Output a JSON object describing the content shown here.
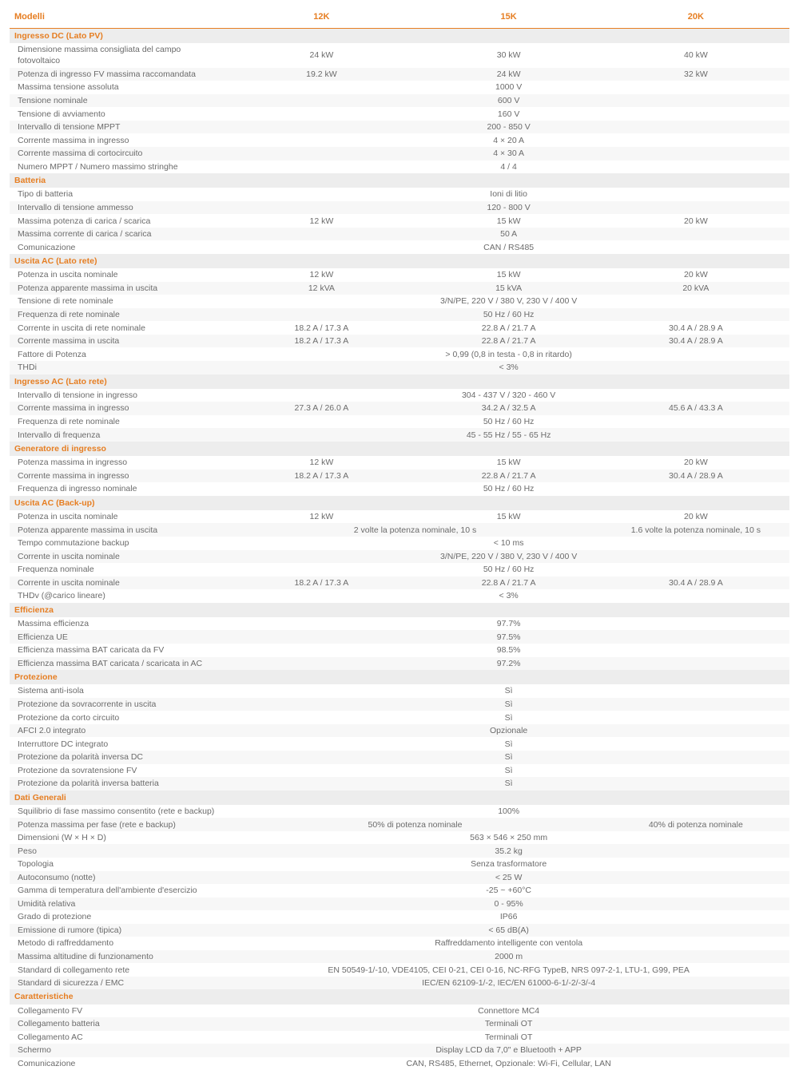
{
  "colors": {
    "accent": "#e67e22",
    "section_bg": "#ededed",
    "alt_bg": "#f7f7f7",
    "text": "#6b6b6b",
    "header_border": "#e67e22"
  },
  "header": {
    "label": "Modelli",
    "cols": [
      "12K",
      "15K",
      "20K"
    ]
  },
  "sections": [
    {
      "title": "Ingresso DC (Lato PV)",
      "rows": [
        {
          "label": "Dimensione massima consigliata del campo fotovoltaico",
          "vals": [
            "24 kW",
            "30 kW",
            "40 kW"
          ]
        },
        {
          "label": "Potenza di ingresso FV massima raccomandata",
          "vals": [
            "19.2 kW",
            "24 kW",
            "32 kW"
          ]
        },
        {
          "label": "Massima tensione assoluta",
          "merged": "1000 V"
        },
        {
          "label": "Tensione nominale",
          "merged": "600 V"
        },
        {
          "label": "Tensione di avviamento",
          "merged": "160 V"
        },
        {
          "label": "Intervallo di tensione MPPT",
          "merged": "200 - 850 V"
        },
        {
          "label": "Corrente massima in ingresso",
          "merged": "4 × 20 A"
        },
        {
          "label": "Corrente massima di cortocircuito",
          "merged": "4 × 30 A"
        },
        {
          "label": "Numero MPPT / Numero massimo stringhe",
          "merged": "4 / 4"
        }
      ]
    },
    {
      "title": "Batteria",
      "rows": [
        {
          "label": "Tipo di batteria",
          "merged": "Ioni di litio"
        },
        {
          "label": "Intervallo di tensione ammesso",
          "merged": "120 - 800 V"
        },
        {
          "label": "Massima potenza di carica / scarica",
          "vals": [
            "12 kW",
            "15 kW",
            "20 kW"
          ]
        },
        {
          "label": "Massima corrente di carica / scarica",
          "merged": "50 A"
        },
        {
          "label": "Comunicazione",
          "merged": "CAN / RS485"
        }
      ]
    },
    {
      "title": "Uscita AC (Lato rete)",
      "rows": [
        {
          "label": "Potenza in uscita nominale",
          "vals": [
            "12 kW",
            "15 kW",
            "20 kW"
          ]
        },
        {
          "label": "Potenza apparente massima in uscita",
          "vals": [
            "12 kVA",
            "15 kVA",
            "20 kVA"
          ]
        },
        {
          "label": "Tensione di rete nominale",
          "merged": "3/N/PE, 220 V / 380 V, 230 V / 400 V"
        },
        {
          "label": "Frequenza di rete nominale",
          "merged": "50 Hz / 60 Hz"
        },
        {
          "label": "Corrente in uscita di rete nominale",
          "vals": [
            "18.2 A / 17.3 A",
            "22.8 A / 21.7 A",
            "30.4 A / 28.9 A"
          ]
        },
        {
          "label": "Corrente massima in uscita",
          "vals": [
            "18.2 A / 17.3 A",
            "22.8 A / 21.7 A",
            "30.4 A / 28.9 A"
          ]
        },
        {
          "label": "Fattore di Potenza",
          "merged": "> 0,99 (0,8 in testa - 0,8 in ritardo)"
        },
        {
          "label": "THDi",
          "merged": "< 3%"
        }
      ]
    },
    {
      "title": "Ingresso AC (Lato rete)",
      "rows": [
        {
          "label": "Intervallo di tensione in ingresso",
          "merged": "304 - 437 V / 320 - 460 V"
        },
        {
          "label": "Corrente massima in ingresso",
          "vals": [
            "27.3 A / 26.0 A",
            "34.2 A / 32.5 A",
            "45.6 A / 43.3 A"
          ]
        },
        {
          "label": "Frequenza di rete nominale",
          "merged": "50 Hz / 60 Hz"
        },
        {
          "label": "Intervallo di frequenza",
          "merged": "45 - 55 Hz / 55 - 65 Hz"
        }
      ]
    },
    {
      "title": "Generatore di ingresso",
      "rows": [
        {
          "label": "Potenza massima in ingresso",
          "vals": [
            "12 kW",
            "15 kW",
            "20 kW"
          ]
        },
        {
          "label": "Corrente massima in ingresso",
          "vals": [
            "18.2 A / 17.3 A",
            "22.8 A / 21.7 A",
            "30.4 A / 28.9 A"
          ]
        },
        {
          "label": "Frequenza di ingresso nominale",
          "merged": "50 Hz / 60 Hz"
        }
      ]
    },
    {
      "title": "Uscita AC (Back-up)",
      "rows": [
        {
          "label": "Potenza in uscita nominale",
          "vals": [
            "12 kW",
            "15 kW",
            "20 kW"
          ]
        },
        {
          "label": "Potenza apparente massima in uscita",
          "vals_merge": [
            [
              "2 volte la potenza nominale, 10 s",
              2
            ],
            [
              "1.6 volte la potenza nominale, 10 s",
              1
            ]
          ]
        },
        {
          "label": "Tempo commutazione backup",
          "merged": "< 10 ms"
        },
        {
          "label": "Corrente in uscita nominale",
          "merged": "3/N/PE, 220 V / 380 V, 230 V / 400 V"
        },
        {
          "label": "Frequenza nominale",
          "merged": "50 Hz / 60 Hz"
        },
        {
          "label": "Corrente in uscita nominale",
          "vals": [
            "18.2 A / 17.3 A",
            "22.8 A / 21.7 A",
            "30.4 A / 28.9 A"
          ]
        },
        {
          "label": "THDv (@carico lineare)",
          "merged": "< 3%"
        }
      ]
    },
    {
      "title": "Efficienza",
      "rows": [
        {
          "label": "Massima efficienza",
          "merged": "97.7%"
        },
        {
          "label": "Efficienza UE",
          "merged": "97.5%"
        },
        {
          "label": "Efficienza massima BAT caricata da FV",
          "merged": "98.5%"
        },
        {
          "label": "Efficienza massima BAT caricata / scaricata in AC",
          "merged": "97.2%"
        }
      ]
    },
    {
      "title": "Protezione",
      "rows": [
        {
          "label": "Sistema anti-isola",
          "merged": "Sì"
        },
        {
          "label": "Protezione da sovracorrente in uscita",
          "merged": "Sì"
        },
        {
          "label": "Protezione da corto circuito",
          "merged": "Sì"
        },
        {
          "label": "AFCI 2.0 integrato",
          "merged": "Opzionale"
        },
        {
          "label": "Interruttore DC integrato",
          "merged": "Sì"
        },
        {
          "label": "Protezione da polarità inversa DC",
          "merged": "Sì"
        },
        {
          "label": "Protezione da sovratensione FV",
          "merged": "Sì"
        },
        {
          "label": "Protezione da polarità inversa batteria",
          "merged": "Sì"
        }
      ]
    },
    {
      "title": "Dati Generali",
      "rows": [
        {
          "label": "Squilibrio di fase massimo consentito (rete e backup)",
          "merged": "100%"
        },
        {
          "label": "Potenza massima per fase (rete e backup)",
          "vals_merge": [
            [
              "50% di potenza nominale",
              2
            ],
            [
              "40% di potenza nominale",
              1
            ]
          ]
        },
        {
          "label": "Dimensioni (W × H × D)",
          "merged": "563 × 546 × 250 mm"
        },
        {
          "label": "Peso",
          "merged": "35.2 kg"
        },
        {
          "label": "Topologia",
          "merged": "Senza trasformatore"
        },
        {
          "label": "Autoconsumo (notte)",
          "merged": "< 25 W"
        },
        {
          "label": "Gamma di temperatura dell'ambiente d'esercizio",
          "merged": "-25 ~ +60°C"
        },
        {
          "label": "Umidità relativa",
          "merged": "0 - 95%"
        },
        {
          "label": "Grado di protezione",
          "merged": "IP66"
        },
        {
          "label": "Emissione di rumore (tipica)",
          "merged": "< 65 dB(A)"
        },
        {
          "label": "Metodo di raffreddamento",
          "merged": "Raffreddamento intelligente con ventola"
        },
        {
          "label": "Massima altitudine di funzionamento",
          "merged": "2000 m"
        },
        {
          "label": "Standard di collegamento rete",
          "merged": "EN 50549-1/-10, VDE4105, CEI 0-21, CEI 0-16, NC-RFG TypeB, NRS 097-2-1, LTU-1, G99, PEA"
        },
        {
          "label": "Standard di sicurezza / EMC",
          "merged": "IEC/EN 62109-1/-2, IEC/EN 61000-6-1/-2/-3/-4"
        }
      ]
    },
    {
      "title": "Caratteristiche",
      "rows": [
        {
          "label": "Collegamento FV",
          "merged": "Connettore MC4"
        },
        {
          "label": "Collegamento batteria",
          "merged": "Terminali OT"
        },
        {
          "label": "Collegamento AC",
          "merged": "Terminali OT"
        },
        {
          "label": "Schermo",
          "merged": "Display LCD da 7,0\" e Bluetooth + APP"
        },
        {
          "label": "Comunicazione",
          "merged": "CAN, RS485, Ethernet, Opzionale: Wi-Fi, Cellular, LAN"
        }
      ]
    }
  ]
}
